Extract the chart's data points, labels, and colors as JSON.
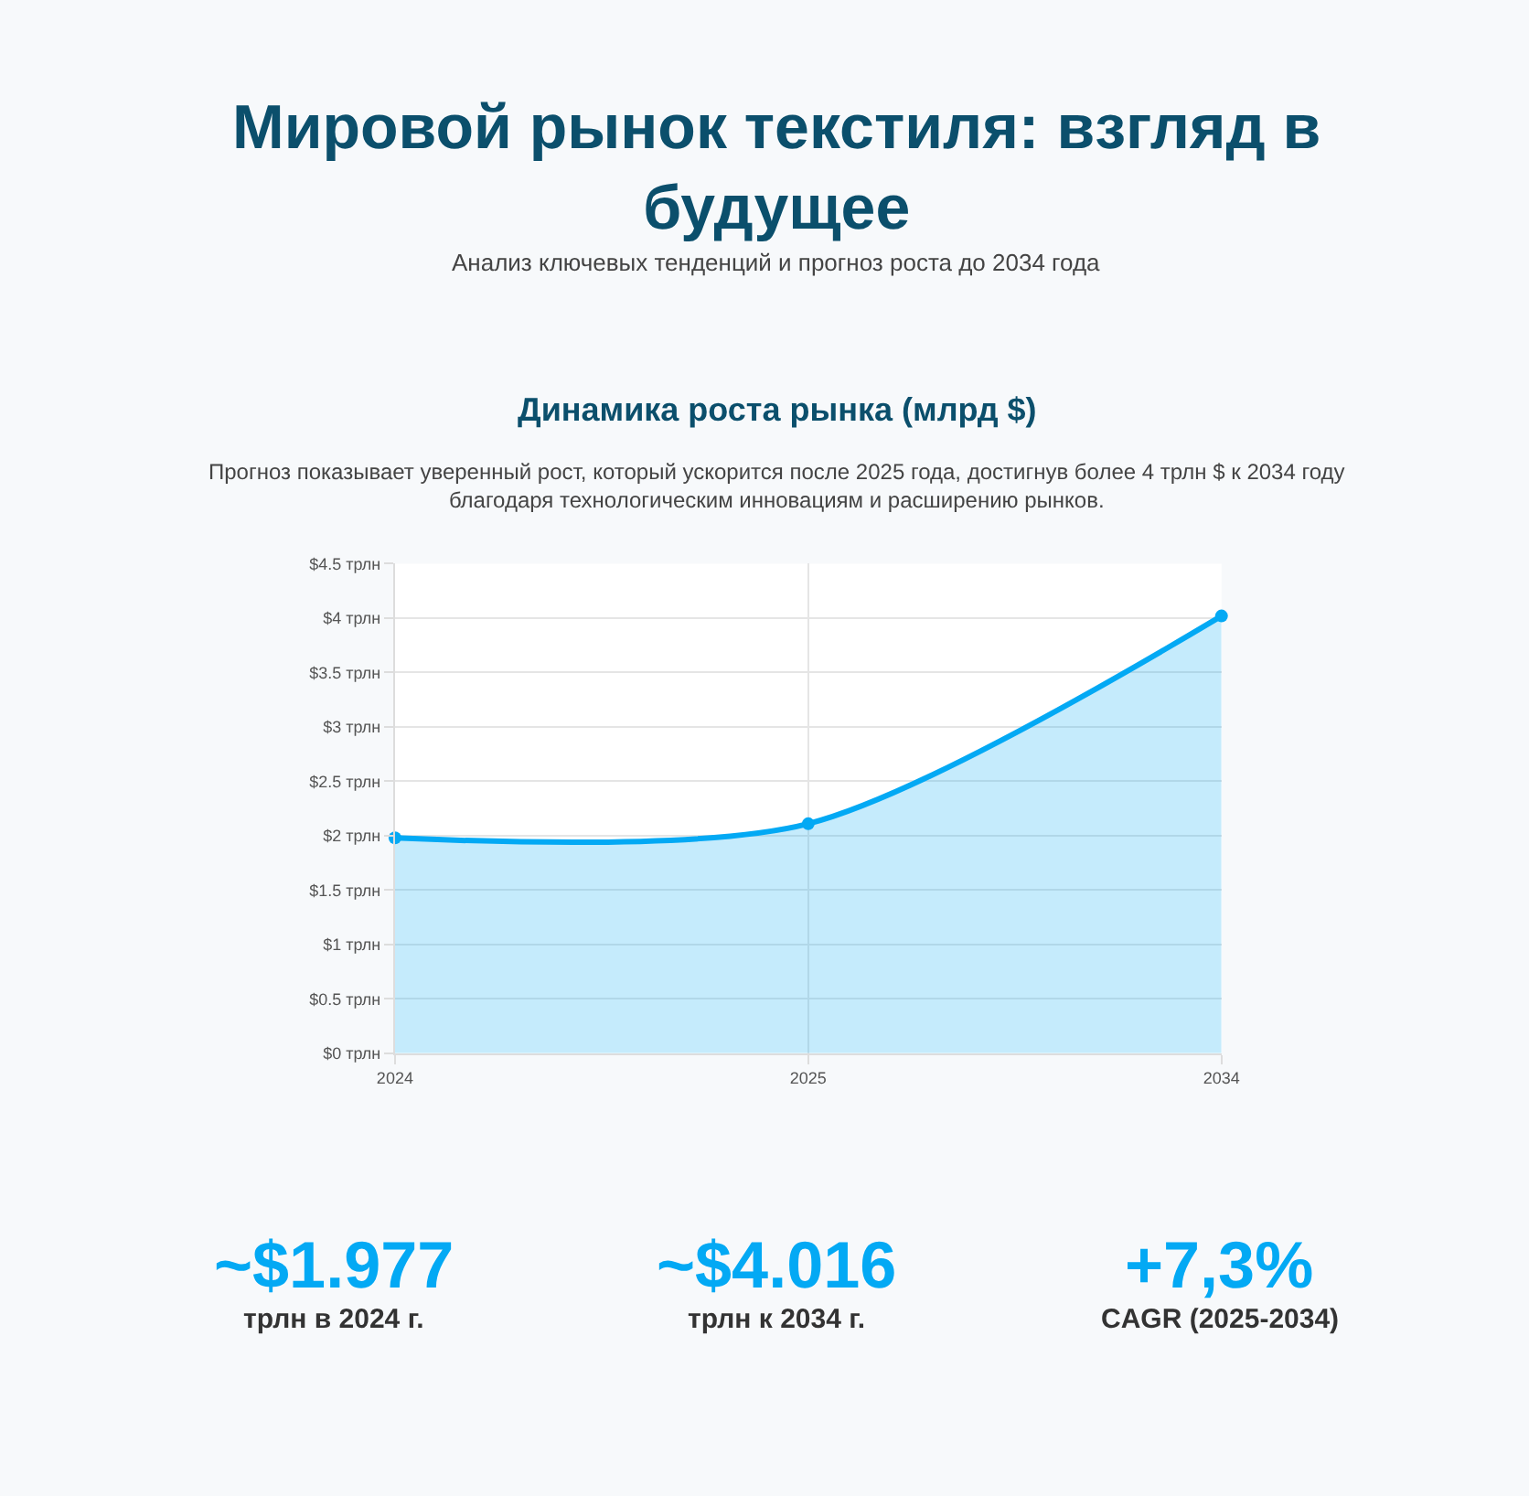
{
  "chart_data": [
    {
      "type": "other",
      "title": "Мировой рынок текстиля: взгляд в будущее",
      "subtitle": "Анализ ключевых тенденций и прогноз роста до 2034 года"
    },
    {
      "type": "area",
      "title": "Динамика роста рынка (млрд $)",
      "subtitle": "Прогноз показывает уверенный рост, который ускорится после 2025 года, достигнув более 4 трлн $ к 2034 году благодаря технологическим инновациям и расширению рынков.",
      "categories": [
        "2024",
        "2025",
        "2034"
      ],
      "series": [
        {
          "color": "#03a9f4",
          "values": [
            1.98,
            2.11,
            4.02
          ]
        }
      ],
      "ylim": [
        0,
        4.5
      ],
      "yticks": [
        {
          "value": 0,
          "label": "$0 трлн"
        },
        {
          "value": 0.5,
          "label": "$0.5 трлн"
        },
        {
          "value": 1,
          "label": "$1 трлн"
        },
        {
          "value": 1.5,
          "label": "$1.5 трлн"
        },
        {
          "value": 2,
          "label": "$2 трлн"
        },
        {
          "value": 2.5,
          "label": "$2.5 трлн"
        },
        {
          "value": 3,
          "label": "$3 трлн"
        },
        {
          "value": 3.5,
          "label": "$3.5 трлн"
        },
        {
          "value": 4,
          "label": "$4 трлн"
        },
        {
          "value": 4.5,
          "label": "$4.5 трлн"
        }
      ],
      "grid": true,
      "legend": false,
      "marker": "circle",
      "line_style": "solid"
    },
    {
      "type": "other",
      "title": "~$1.977",
      "subtitle": "трлн в 2024 г."
    },
    {
      "type": "other",
      "title": "~$4.016",
      "subtitle": "трлн к 2034 г."
    },
    {
      "type": "other",
      "title": "+7,3%",
      "subtitle": "CAGR (2025-2034)"
    }
  ]
}
